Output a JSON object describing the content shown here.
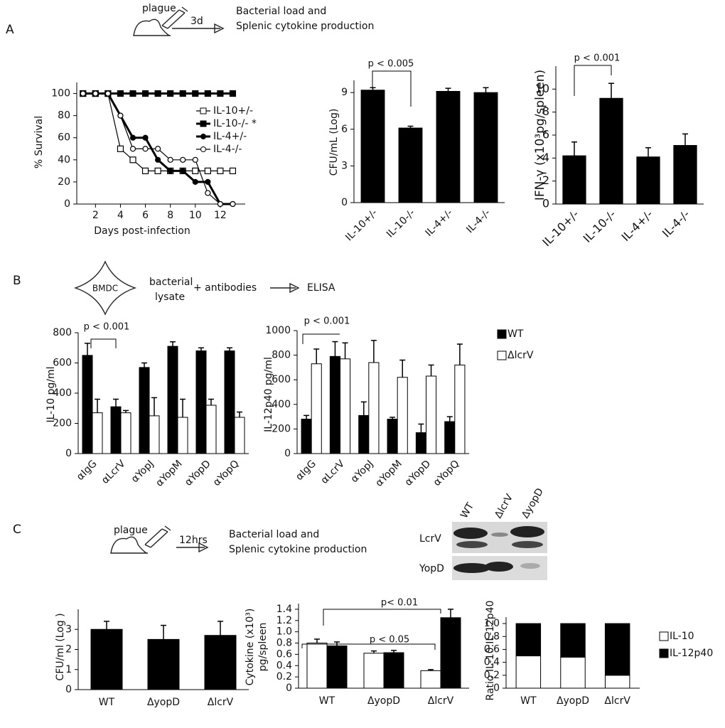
{
  "panels": [
    {
      "label": "A",
      "schematic": {
        "agent": "plague",
        "time": "3d",
        "outcome": [
          "Bacterial load and",
          "Splenic cytokine production"
        ]
      }
    },
    {
      "label": "B",
      "schematic": {
        "cell": "BMDC",
        "steps": [
          "bacterial",
          "lysate",
          "+ antibodies"
        ],
        "readout": "ELISA"
      }
    },
    {
      "label": "C",
      "schematic": {
        "agent": "plague",
        "time": "12hrs",
        "outcome": [
          "Bacterial load and",
          "Splenic cytokine production"
        ]
      },
      "blot": {
        "lanes": [
          "WT",
          "ΔlcrV",
          "ΔyopD"
        ],
        "rows": [
          "LcrV",
          "YopD"
        ]
      }
    }
  ],
  "chart_data": [
    {
      "type": "line",
      "xlabel": "Days post-infection",
      "ylabel": "% Survival",
      "x": [
        1,
        2,
        3,
        4,
        5,
        6,
        7,
        8,
        9,
        10,
        11,
        12,
        13
      ],
      "xlim": [
        0.5,
        14
      ],
      "xticks": [
        2,
        4,
        6,
        8,
        10,
        12
      ],
      "ylim": [
        0,
        110
      ],
      "yticks": [
        0,
        20,
        40,
        60,
        80,
        100
      ],
      "legend": "upper right",
      "series": [
        {
          "name": "IL-10+/-",
          "color": "#000000",
          "marker": "square",
          "filled": false,
          "values": [
            100,
            100,
            100,
            50,
            40,
            30,
            30,
            30,
            30,
            30,
            30,
            30,
            30
          ]
        },
        {
          "name": "IL-10-/- *",
          "color": "#000000",
          "marker": "square",
          "filled": true,
          "values": [
            100,
            100,
            100,
            100,
            100,
            100,
            100,
            100,
            100,
            100,
            100,
            100,
            100
          ]
        },
        {
          "name": "IL-4+/-",
          "color": "#000000",
          "marker": "circle",
          "filled": true,
          "values": [
            100,
            100,
            100,
            80,
            60,
            60,
            40,
            30,
            30,
            20,
            20,
            0,
            0
          ]
        },
        {
          "name": "IL-4-/-",
          "color": "#000000",
          "marker": "circle",
          "filled": false,
          "values": [
            100,
            100,
            100,
            80,
            50,
            50,
            50,
            40,
            40,
            40,
            10,
            0,
            0
          ]
        }
      ]
    },
    {
      "type": "bar",
      "ylabel": "CFU/mL (Log)",
      "categories": [
        "IL-10+/-",
        "IL-10-/-",
        "IL-4+/-",
        "IL-4-/-"
      ],
      "ylim": [
        0,
        10
      ],
      "yticks": [
        0,
        3,
        6,
        9
      ],
      "annotations": [
        "p < 0.005"
      ],
      "series": [
        {
          "color": "#000000",
          "values": [
            9.2,
            6.1,
            9.1,
            9.0
          ],
          "errors": [
            0.2,
            0.15,
            0.25,
            0.4
          ]
        }
      ]
    },
    {
      "type": "bar",
      "ylabel": "IFN-γ (x10³pg/spleen)",
      "categories": [
        "IL-10+/-",
        "IL-10-/-",
        "IL-4+/-",
        "IL-4-/-"
      ],
      "ylim": [
        0,
        12
      ],
      "yticks": [
        0,
        2,
        4,
        6,
        8,
        10
      ],
      "annotations": [
        "p < 0.001"
      ],
      "series": [
        {
          "color": "#000000",
          "values": [
            4.2,
            9.2,
            4.1,
            5.1
          ],
          "errors": [
            1.2,
            1.3,
            0.8,
            1.0
          ]
        }
      ]
    },
    {
      "type": "bar",
      "ylabel": "IL-10 pg/ml",
      "categories": [
        "αIgG",
        "αLcrV",
        "αYopJ",
        "αYopM",
        "αYopD",
        "αYopQ"
      ],
      "ylim": [
        0,
        800
      ],
      "yticks": [
        0,
        200,
        400,
        600,
        800
      ],
      "annotations": [
        "p < 0.001"
      ],
      "series": [
        {
          "color": "#000000",
          "values": [
            650,
            310,
            570,
            710,
            680,
            680
          ],
          "errors": [
            80,
            50,
            30,
            30,
            20,
            20
          ]
        },
        {
          "color": "#ffffff",
          "values": [
            270,
            270,
            250,
            240,
            320,
            240
          ],
          "errors": [
            90,
            15,
            120,
            120,
            40,
            35
          ]
        }
      ]
    },
    {
      "type": "bar",
      "ylabel": "IL-12p40 pg/ml",
      "categories": [
        "αIgG",
        "αLcrV",
        "αYopJ",
        "αYopM",
        "αYopD",
        "αYopQ"
      ],
      "ylim": [
        0,
        1000
      ],
      "yticks": [
        0,
        200,
        400,
        600,
        800,
        1000
      ],
      "annotations": [
        "p < 0.001"
      ],
      "legend": "right",
      "series": [
        {
          "name": "WT",
          "color": "#000000",
          "values": [
            280,
            790,
            310,
            280,
            170,
            260
          ],
          "errors": [
            30,
            120,
            110,
            15,
            70,
            40
          ]
        },
        {
          "name": "ΔlcrV",
          "color": "#ffffff",
          "values": [
            730,
            770,
            740,
            620,
            630,
            720
          ],
          "errors": [
            120,
            130,
            180,
            140,
            90,
            170
          ]
        }
      ]
    },
    {
      "type": "bar",
      "ylabel": "CFU/ml (Log )",
      "categories": [
        "WT",
        "ΔyopD",
        "ΔlcrV"
      ],
      "ylim": [
        0,
        4
      ],
      "yticks": [
        0,
        1,
        2,
        3
      ],
      "series": [
        {
          "color": "#000000",
          "values": [
            3.0,
            2.5,
            2.7
          ],
          "errors": [
            0.4,
            0.7,
            0.7
          ]
        }
      ]
    },
    {
      "type": "bar",
      "ylabel": [
        "Cytokine (x10³)",
        "pg/spleen"
      ],
      "categories": [
        "WT",
        "ΔyopD",
        "ΔlcrV"
      ],
      "ylim": [
        0,
        1.5
      ],
      "yticks": [
        0,
        0.2,
        0.4,
        0.6,
        0.8,
        {
          "value": 1,
          "label": "1.0"
        },
        1.2,
        1.4
      ],
      "annotations": [
        "p< 0.01",
        "p < 0.05"
      ],
      "series": [
        {
          "color": "#ffffff",
          "values": [
            0.8,
            0.62,
            0.31
          ],
          "errors": [
            0.07,
            0.04,
            0.02
          ]
        },
        {
          "color": "#000000",
          "values": [
            0.75,
            0.63,
            1.25
          ],
          "errors": [
            0.07,
            0.04,
            0.15
          ]
        }
      ]
    },
    {
      "type": "bar",
      "stacked": true,
      "ylabel": "Ratio IL-10:IL-12p40",
      "categories": [
        "WT",
        "ΔyopD",
        "ΔlcrV"
      ],
      "ylim": [
        0,
        1.1
      ],
      "yticks": [
        0,
        0.2,
        0.4,
        0.6,
        0.8,
        {
          "value": 1,
          "label": "1.0"
        }
      ],
      "legend": "right",
      "series": [
        {
          "name": "IL-10",
          "color": "#ffffff",
          "values": [
            0.5,
            0.48,
            0.2
          ]
        },
        {
          "name": "IL-12p40",
          "color": "#000000",
          "values": [
            0.5,
            0.52,
            0.8
          ]
        }
      ]
    }
  ]
}
